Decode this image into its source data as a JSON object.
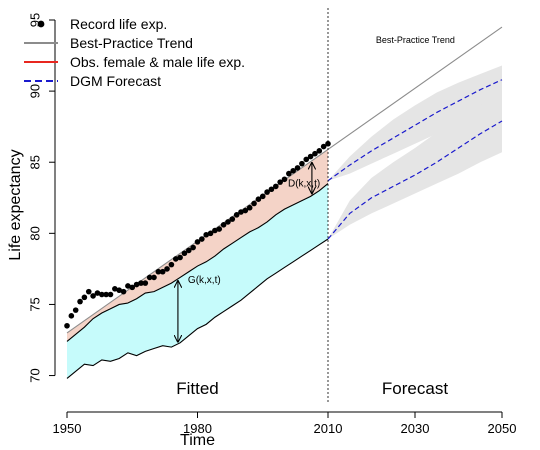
{
  "chart_data": {
    "type": "line",
    "xlabel": "Time",
    "ylabel": "Life expectancy",
    "xlim": [
      1950,
      2050
    ],
    "ylim": [
      68,
      95
    ],
    "x_ticks": [
      1950,
      1980,
      2010,
      2030,
      2050
    ],
    "y_ticks": [
      70,
      75,
      80,
      85,
      90,
      95
    ],
    "grid": false,
    "legend_position": "top-left",
    "legend": [
      {
        "label": "Record life exp.",
        "style": "points",
        "color": "#000000"
      },
      {
        "label": "Best-Practice Trend",
        "style": "solid",
        "color": "#8c8c8c"
      },
      {
        "label": "Obs. female & male life exp.",
        "style": "solid",
        "color": "#e8261f"
      },
      {
        "label": "DGM Forecast",
        "style": "dashed",
        "color": "#1a1acd"
      }
    ],
    "annotations": {
      "fitted": "Fitted",
      "forecast": "Forecast",
      "trend_note": "Best-Practice Trend",
      "d_label": "D(k,x,t)",
      "g_label": "G(k,x,t)"
    },
    "divider_x": 2010,
    "record": {
      "x": [
        1950,
        1951,
        1952,
        1953,
        1954,
        1955,
        1956,
        1957,
        1958,
        1959,
        1960,
        1961,
        1962,
        1963,
        1964,
        1965,
        1966,
        1967,
        1968,
        1969,
        1970,
        1971,
        1972,
        1973,
        1974,
        1975,
        1976,
        1977,
        1978,
        1979,
        1980,
        1981,
        1982,
        1983,
        1984,
        1985,
        1986,
        1987,
        1988,
        1989,
        1990,
        1991,
        1992,
        1993,
        1994,
        1995,
        1996,
        1997,
        1998,
        1999,
        2000,
        2001,
        2002,
        2003,
        2004,
        2005,
        2006,
        2007,
        2008,
        2009,
        2010
      ],
      "y": [
        73.5,
        74.2,
        74.6,
        75.2,
        75.5,
        75.9,
        75.6,
        75.8,
        75.7,
        75.7,
        75.7,
        76.1,
        76.0,
        75.9,
        76.3,
        76.2,
        76.4,
        76.5,
        76.5,
        76.9,
        76.9,
        77.3,
        77.3,
        77.5,
        77.8,
        78.2,
        78.3,
        78.6,
        78.8,
        79.0,
        79.4,
        79.6,
        79.9,
        80.0,
        80.2,
        80.3,
        80.6,
        80.8,
        81.0,
        81.3,
        81.5,
        81.6,
        81.8,
        82.1,
        82.4,
        82.6,
        82.9,
        83.1,
        83.3,
        83.6,
        83.8,
        84.2,
        84.4,
        84.6,
        84.9,
        85.2,
        85.4,
        85.6,
        85.8,
        86.1,
        86.3
      ]
    },
    "best_practice_trend": {
      "x": [
        1950,
        2050
      ],
      "y": [
        73.0,
        94.5
      ]
    },
    "female_observed": {
      "x": [
        1950,
        1952,
        1954,
        1956,
        1958,
        1960,
        1962,
        1964,
        1966,
        1968,
        1970,
        1972,
        1974,
        1976,
        1978,
        1980,
        1982,
        1984,
        1986,
        1988,
        1990,
        1992,
        1994,
        1996,
        1998,
        2000,
        2002,
        2004,
        2006,
        2008,
        2010
      ],
      "y": [
        72.4,
        72.9,
        73.4,
        74.0,
        74.4,
        74.7,
        75.0,
        75.1,
        75.4,
        75.8,
        75.9,
        76.2,
        76.5,
        76.9,
        77.3,
        77.7,
        78.0,
        78.4,
        78.9,
        79.3,
        79.7,
        80.1,
        80.4,
        80.8,
        81.3,
        81.7,
        82.0,
        82.3,
        82.6,
        83.0,
        83.5
      ]
    },
    "male_observed": {
      "x": [
        1950,
        1952,
        1954,
        1956,
        1958,
        1960,
        1962,
        1964,
        1966,
        1968,
        1970,
        1972,
        1974,
        1976,
        1978,
        1980,
        1982,
        1984,
        1986,
        1988,
        1990,
        1992,
        1994,
        1996,
        1998,
        2000,
        2002,
        2004,
        2006,
        2008,
        2010
      ],
      "y": [
        69.8,
        70.3,
        70.8,
        70.7,
        71.1,
        71.0,
        71.2,
        71.6,
        71.4,
        71.7,
        71.9,
        72.1,
        72.0,
        72.3,
        72.8,
        73.3,
        73.6,
        74.1,
        74.5,
        74.9,
        75.3,
        75.8,
        76.3,
        76.8,
        77.2,
        77.6,
        78.0,
        78.4,
        78.8,
        79.2,
        79.6
      ]
    },
    "dgm_forecast": [
      {
        "x": [
          2010,
          2015,
          2020,
          2025,
          2030,
          2035,
          2040,
          2045,
          2050
        ],
        "y": [
          83.7,
          84.8,
          85.8,
          86.7,
          87.6,
          88.5,
          89.3,
          90.1,
          90.8
        ],
        "band_low": [
          83.7,
          84.2,
          84.9,
          85.6,
          86.3,
          87.0,
          87.6,
          88.2,
          88.8
        ],
        "band_high": [
          83.7,
          85.4,
          86.8,
          88.0,
          89.0,
          89.9,
          90.6,
          91.2,
          91.8
        ]
      },
      {
        "x": [
          2010,
          2015,
          2020,
          2025,
          2030,
          2035,
          2040,
          2045,
          2050
        ],
        "y": [
          79.6,
          81.4,
          82.5,
          83.3,
          84.1,
          85.0,
          86.0,
          87.0,
          87.9
        ],
        "band_low": [
          79.6,
          80.6,
          81.4,
          82.1,
          82.8,
          83.5,
          84.2,
          85.0,
          85.7
        ],
        "band_high": [
          79.6,
          82.3,
          83.9,
          85.0,
          86.0,
          87.1,
          88.1,
          89.0,
          89.8
        ]
      }
    ],
    "colors": {
      "record": "#000000",
      "trend": "#8c8c8c",
      "female_fill": "#f4d3c7",
      "male_fill": "#c6fbfb",
      "forecast": "#1a1acd",
      "band": "#e5e5e5",
      "observed_line": "#000000"
    }
  }
}
